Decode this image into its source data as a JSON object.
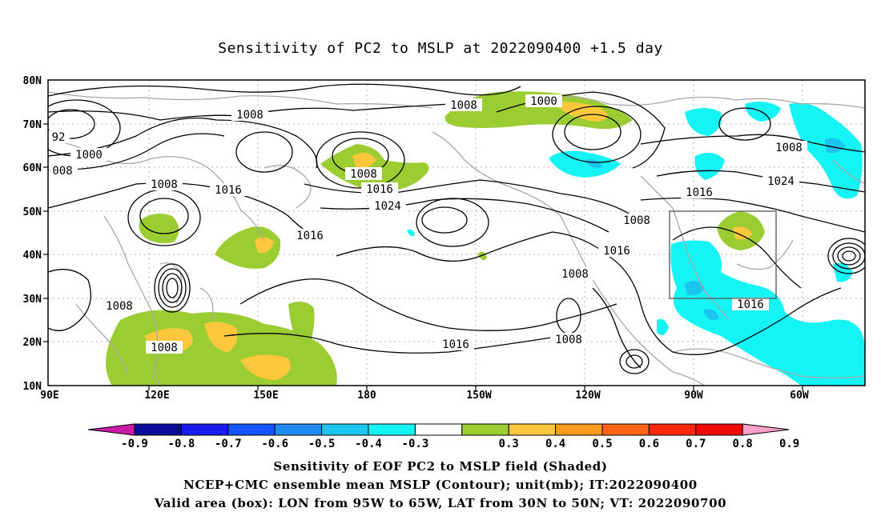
{
  "title": "Sensitivity of PC2 to MSLP at 2022090400 +1.5 day",
  "map": {
    "lat_labels": [
      "80N",
      "70N",
      "60N",
      "50N",
      "40N",
      "30N",
      "20N",
      "10N"
    ],
    "lon_labels": [
      "90E",
      "120E",
      "150E",
      "180",
      "150W",
      "120W",
      "90W",
      "60W"
    ],
    "contour_labels": [
      {
        "id": "c1008a",
        "text": "1008"
      },
      {
        "id": "c1000a",
        "text": "1000"
      },
      {
        "id": "c1008b",
        "text": "1008"
      },
      {
        "id": "c1008c",
        "text": "1008"
      },
      {
        "id": "c92",
        "text": "92"
      },
      {
        "id": "c1000b",
        "text": "1000"
      },
      {
        "id": "c008",
        "text": "008"
      },
      {
        "id": "c1008d",
        "text": "1008"
      },
      {
        "id": "c1008e",
        "text": "1008"
      },
      {
        "id": "c1016a",
        "text": "1016"
      },
      {
        "id": "c1016b",
        "text": "1016"
      },
      {
        "id": "c1024a",
        "text": "1024"
      },
      {
        "id": "c1016c",
        "text": "1016"
      },
      {
        "id": "c1016d",
        "text": "1016"
      },
      {
        "id": "c1024b",
        "text": "1024"
      },
      {
        "id": "c1008f",
        "text": "1008"
      },
      {
        "id": "c1016e",
        "text": "1016"
      },
      {
        "id": "c1008g",
        "text": "1008"
      },
      {
        "id": "c1016f",
        "text": "1016"
      },
      {
        "id": "c1008h",
        "text": "1008"
      },
      {
        "id": "c1008i",
        "text": "1008"
      },
      {
        "id": "c1008j",
        "text": "1008"
      },
      {
        "id": "c1016g",
        "text": "1016"
      }
    ],
    "valid_box": {
      "lon_from": "95W",
      "lon_to": "65W",
      "lat_from": "30N",
      "lat_to": "50N"
    }
  },
  "colorbar": {
    "labels": [
      "-0.9",
      "-0.8",
      "-0.7",
      "-0.6",
      "-0.5",
      "-0.4",
      "-0.3",
      "0.3",
      "0.4",
      "0.5",
      "0.6",
      "0.7",
      "0.8",
      "0.9"
    ],
    "colors": [
      "#0c0c9a",
      "#1a1aee",
      "#1454ff",
      "#1e8cf0",
      "#1cc4f0",
      "#14f4f4",
      "#ffffff",
      "#9bcd32",
      "#ffc83c",
      "#ff9c1e",
      "#ff6414",
      "#ff280a",
      "#f00a0a"
    ],
    "low_arrow_color": "#cc1aa8",
    "high_arrow_color": "#f7a0c8"
  },
  "captions": [
    "Sensitivity of EOF PC2 to MSLP field (Shaded)",
    "NCEP+CMC ensemble mean MSLP (Contour); unit(mb); IT:2022090400",
    "Valid area (box): LON from 95W to 65W, LAT from 30N to 50N; VT: 2022090700"
  ]
}
